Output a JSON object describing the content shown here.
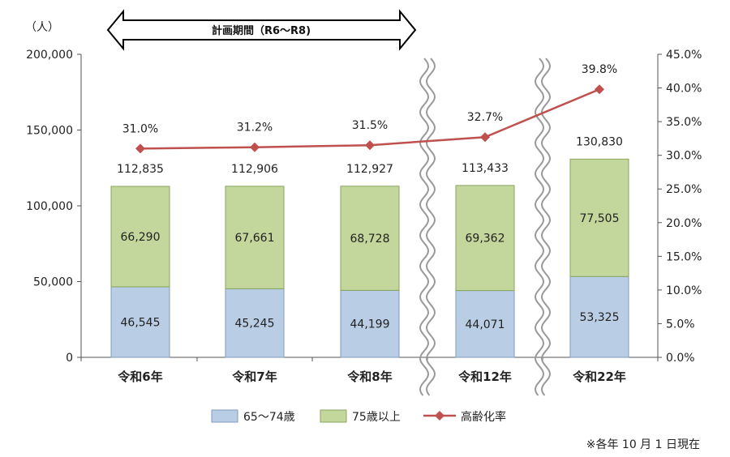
{
  "chart_data": {
    "type": "bar",
    "stacked": true,
    "categories": [
      "令和6年",
      "令和7年",
      "令和8年",
      "令和12年",
      "令和22年"
    ],
    "series": [
      {
        "name": "65～74歳",
        "values": [
          46545,
          45245,
          44199,
          44071,
          53325
        ],
        "color": "#b9cde5"
      },
      {
        "name": "75歳以上",
        "values": [
          66290,
          67661,
          68728,
          69362,
          77505
        ],
        "color": "#c3d69b"
      }
    ],
    "totals": [
      112835,
      112906,
      112927,
      113433,
      130830
    ],
    "line_series": {
      "name": "高齢化率",
      "values": [
        31.0,
        31.2,
        31.5,
        32.7,
        39.8
      ],
      "labels": [
        "31.0%",
        "31.2%",
        "31.5%",
        "32.7%",
        "39.8%"
      ],
      "color": "#c0504d",
      "axis": "right"
    },
    "ylabel": "（人）",
    "ylim": [
      0,
      200000
    ],
    "yticks": [
      "0",
      "50,000",
      "100,000",
      "150,000",
      "200,000"
    ],
    "y2lim": [
      0,
      45
    ],
    "y2ticks": [
      "0.0%",
      "5.0%",
      "10.0%",
      "15.0%",
      "20.0%",
      "25.0%",
      "30.0%",
      "35.0%",
      "40.0%",
      "45.0%"
    ],
    "value_labels": [
      [
        "46,545",
        "66,290",
        "112,835"
      ],
      [
        "45,245",
        "67,661",
        "112,906"
      ],
      [
        "44,199",
        "68,728",
        "112,927"
      ],
      [
        "44,071",
        "69,362",
        "113,433"
      ],
      [
        "53,325",
        "77,505",
        "130,830"
      ]
    ],
    "annotation": "計画期間（R6～R8)",
    "axis_breaks": [
      "between 令和8年 and 令和12年",
      "between 令和12年 and 令和22年"
    ],
    "legend": [
      "65～74歳",
      "75歳以上",
      "高齢化率"
    ],
    "legend_position": "bottom",
    "grid": false
  },
  "footnote": "※各年 10 月 1 日現在"
}
